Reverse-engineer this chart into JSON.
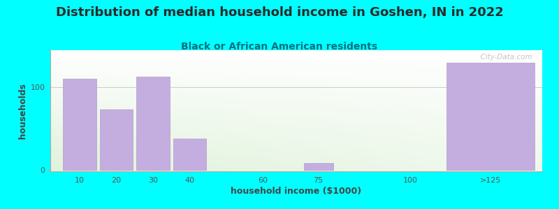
{
  "title": "Distribution of median household income in Goshen, IN in 2022",
  "subtitle": "Black or African American residents",
  "xlabel": "household income ($1000)",
  "ylabel": "households",
  "background_color": "#00FFFF",
  "bar_color": "#C4AEE0",
  "bar_edge_color": "#B09CCE",
  "values": [
    110,
    73,
    113,
    38,
    0,
    8,
    0,
    130
  ],
  "bar_centers": [
    10,
    20,
    30,
    40,
    60,
    75,
    100,
    122
  ],
  "bar_widths": [
    9,
    9,
    9,
    9,
    9,
    8,
    9,
    24
  ],
  "xlim": [
    2,
    136
  ],
  "ylim": [
    -2,
    145
  ],
  "xtick_positions": [
    10,
    20,
    30,
    40,
    60,
    75,
    100,
    122
  ],
  "xtick_labels": [
    "10",
    "20",
    "30",
    "40",
    "60",
    "75",
    "100",
    ">125"
  ],
  "ytick_positions": [
    0,
    100
  ],
  "ytick_labels": [
    "0",
    "100"
  ],
  "title_fontsize": 13,
  "subtitle_fontsize": 10,
  "axis_label_fontsize": 9,
  "tick_fontsize": 8,
  "watermark": "  City-Data.com"
}
